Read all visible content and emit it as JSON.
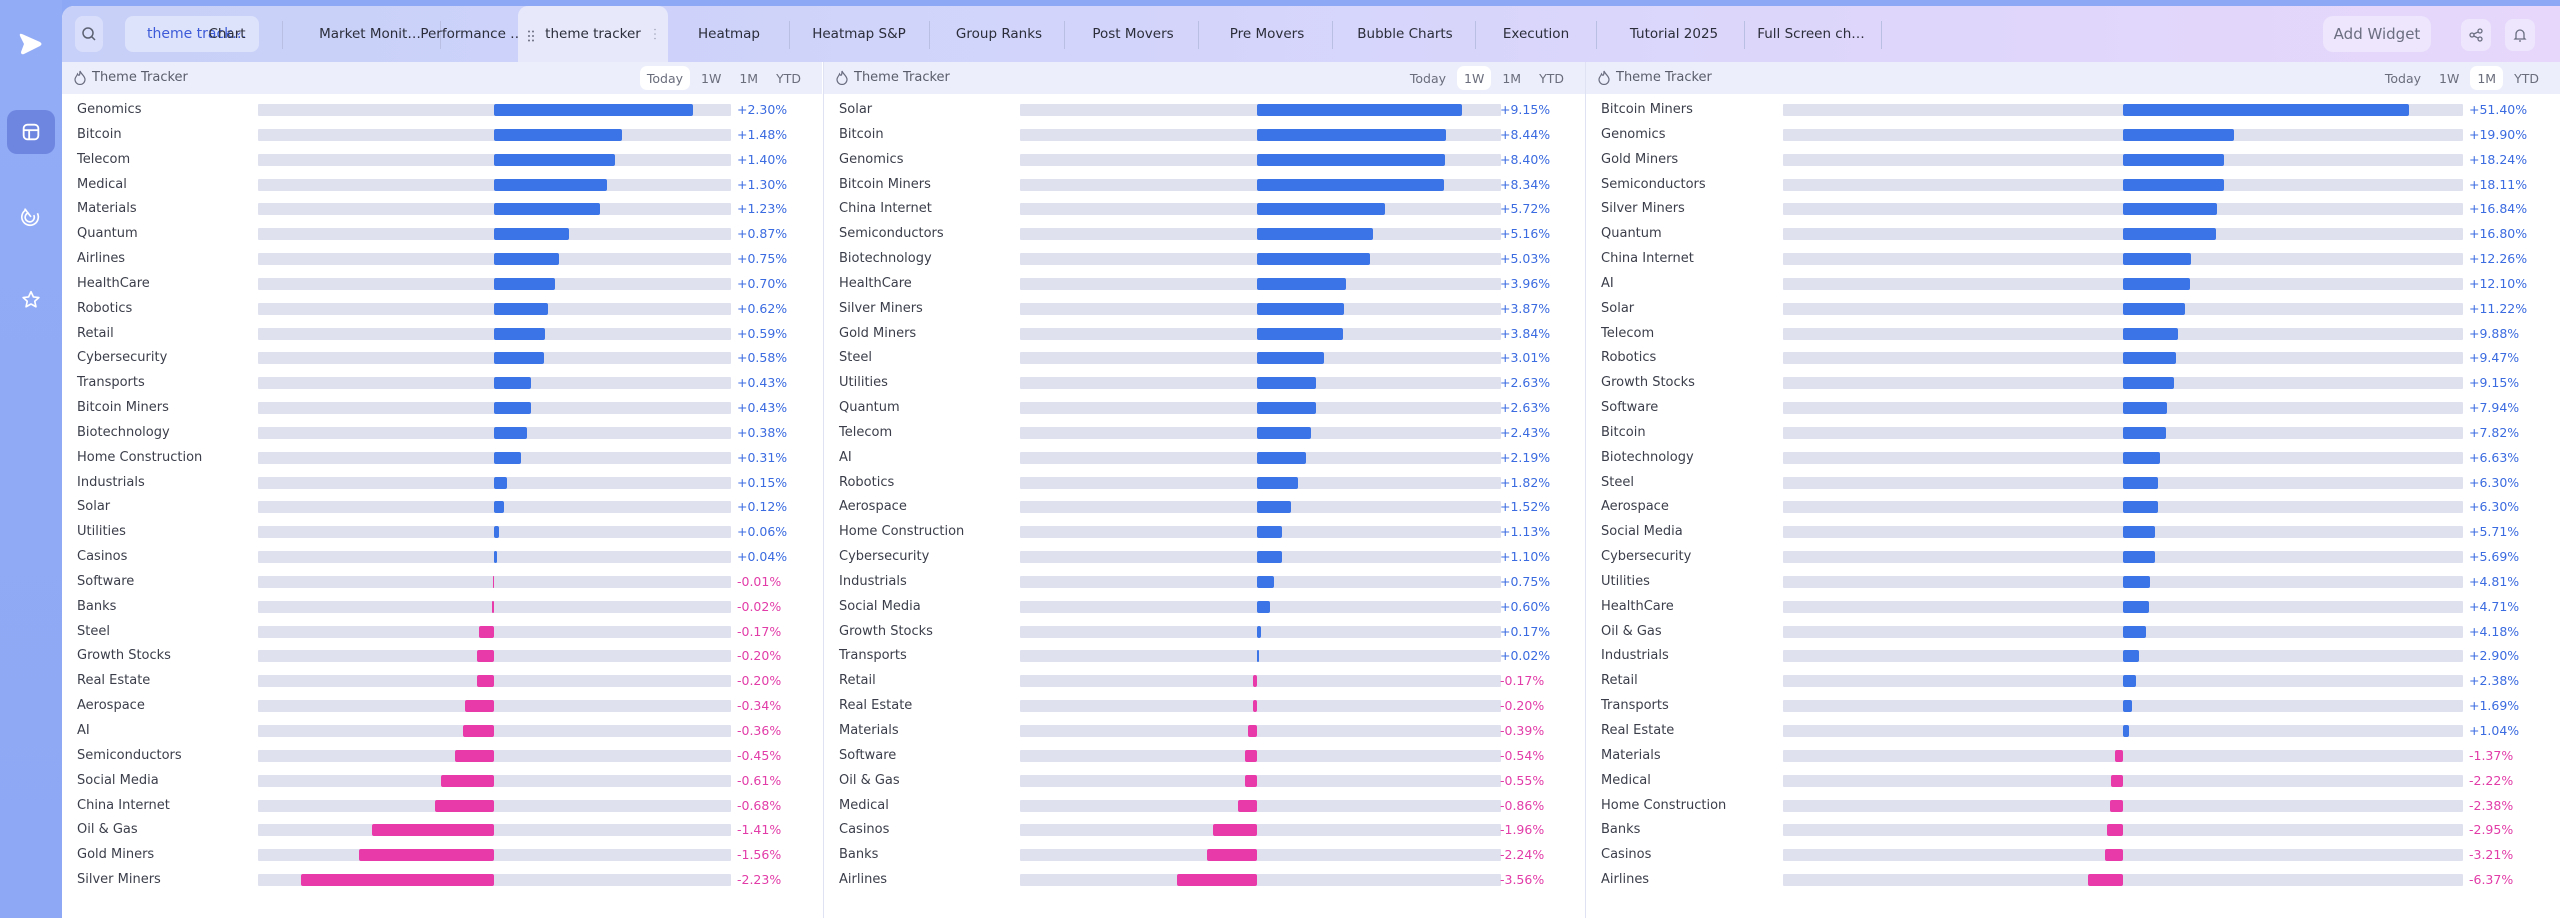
{
  "app": {
    "colors": {
      "sidebar": "#8da8f4",
      "positive": "#3b74e6",
      "negative": "#e93aaa",
      "track": "#dfe1ef"
    }
  },
  "sidebar": {
    "logo_icon": "play-logo-icon",
    "items": [
      {
        "name": "dashboard",
        "icon": "layout-icon",
        "active": true
      },
      {
        "name": "scanner",
        "icon": "radar-icon",
        "active": false
      },
      {
        "name": "watchlist",
        "icon": "star-icon",
        "active": false
      }
    ]
  },
  "topbar": {
    "search_icon": "search-icon",
    "layout_select": {
      "value": "theme track…",
      "icon": "chevron-down-icon"
    },
    "tabs": [
      {
        "label": "Chart",
        "active": false
      },
      {
        "label": "Market Monit…",
        "active": false
      },
      {
        "label": "Performance …",
        "active": false
      },
      {
        "label": "theme tracker",
        "active": true
      },
      {
        "label": "Heatmap",
        "active": false
      },
      {
        "label": "Heatmap S&P",
        "active": false
      },
      {
        "label": "Group Ranks",
        "active": false
      },
      {
        "label": "Post Movers",
        "active": false
      },
      {
        "label": "Pre Movers",
        "active": false
      },
      {
        "label": "Bubble Charts",
        "active": false
      },
      {
        "label": "Execution",
        "active": false
      },
      {
        "label": "Tutorial 2025",
        "active": false
      },
      {
        "label": "Full Screen ch…",
        "active": false
      }
    ],
    "add_widget_label": "Add Widget",
    "share_icon": "share-icon",
    "bell_icon": "bell-icon"
  },
  "panels": [
    {
      "title": "Theme Tracker",
      "ranges": [
        "Today",
        "1W",
        "1M",
        "YTD"
      ],
      "active_range": "Today",
      "rows": [
        {
          "label": "Genomics",
          "value": 2.3,
          "text": "+2.30%"
        },
        {
          "label": "Bitcoin",
          "value": 1.48,
          "text": "+1.48%"
        },
        {
          "label": "Telecom",
          "value": 1.4,
          "text": "+1.40%"
        },
        {
          "label": "Medical",
          "value": 1.3,
          "text": "+1.30%"
        },
        {
          "label": "Materials",
          "value": 1.23,
          "text": "+1.23%"
        },
        {
          "label": "Quantum",
          "value": 0.87,
          "text": "+0.87%"
        },
        {
          "label": "Airlines",
          "value": 0.75,
          "text": "+0.75%"
        },
        {
          "label": "HealthCare",
          "value": 0.7,
          "text": "+0.70%"
        },
        {
          "label": "Robotics",
          "value": 0.62,
          "text": "+0.62%"
        },
        {
          "label": "Retail",
          "value": 0.59,
          "text": "+0.59%"
        },
        {
          "label": "Cybersecurity",
          "value": 0.58,
          "text": "+0.58%"
        },
        {
          "label": "Transports",
          "value": 0.43,
          "text": "+0.43%"
        },
        {
          "label": "Bitcoin Miners",
          "value": 0.43,
          "text": "+0.43%"
        },
        {
          "label": "Biotechnology",
          "value": 0.38,
          "text": "+0.38%"
        },
        {
          "label": "Home Construction",
          "value": 0.31,
          "text": "+0.31%"
        },
        {
          "label": "Industrials",
          "value": 0.15,
          "text": "+0.15%"
        },
        {
          "label": "Solar",
          "value": 0.12,
          "text": "+0.12%"
        },
        {
          "label": "Utilities",
          "value": 0.06,
          "text": "+0.06%"
        },
        {
          "label": "Casinos",
          "value": 0.04,
          "text": "+0.04%"
        },
        {
          "label": "Software",
          "value": -0.01,
          "text": "-0.01%"
        },
        {
          "label": "Banks",
          "value": -0.02,
          "text": "-0.02%"
        },
        {
          "label": "Steel",
          "value": -0.17,
          "text": "-0.17%"
        },
        {
          "label": "Growth Stocks",
          "value": -0.2,
          "text": "-0.20%"
        },
        {
          "label": "Real Estate",
          "value": -0.2,
          "text": "-0.20%"
        },
        {
          "label": "Aerospace",
          "value": -0.34,
          "text": "-0.34%"
        },
        {
          "label": "AI",
          "value": -0.36,
          "text": "-0.36%"
        },
        {
          "label": "Semiconductors",
          "value": -0.45,
          "text": "-0.45%"
        },
        {
          "label": "Social Media",
          "value": -0.61,
          "text": "-0.61%"
        },
        {
          "label": "China Internet",
          "value": -0.68,
          "text": "-0.68%"
        },
        {
          "label": "Oil & Gas",
          "value": -1.41,
          "text": "-1.41%"
        },
        {
          "label": "Gold Miners",
          "value": -1.56,
          "text": "-1.56%"
        },
        {
          "label": "Silver Miners",
          "value": -2.23,
          "text": "-2.23%"
        }
      ]
    },
    {
      "title": "Theme Tracker",
      "ranges": [
        "Today",
        "1W",
        "1M",
        "YTD"
      ],
      "active_range": "1W",
      "rows": [
        {
          "label": "Solar",
          "value": 9.15,
          "text": "+9.15%"
        },
        {
          "label": "Bitcoin",
          "value": 8.44,
          "text": "+8.44%"
        },
        {
          "label": "Genomics",
          "value": 8.4,
          "text": "+8.40%"
        },
        {
          "label": "Bitcoin Miners",
          "value": 8.34,
          "text": "+8.34%"
        },
        {
          "label": "China Internet",
          "value": 5.72,
          "text": "+5.72%"
        },
        {
          "label": "Semiconductors",
          "value": 5.16,
          "text": "+5.16%"
        },
        {
          "label": "Biotechnology",
          "value": 5.03,
          "text": "+5.03%"
        },
        {
          "label": "HealthCare",
          "value": 3.96,
          "text": "+3.96%"
        },
        {
          "label": "Silver Miners",
          "value": 3.87,
          "text": "+3.87%"
        },
        {
          "label": "Gold Miners",
          "value": 3.84,
          "text": "+3.84%"
        },
        {
          "label": "Steel",
          "value": 3.01,
          "text": "+3.01%"
        },
        {
          "label": "Utilities",
          "value": 2.63,
          "text": "+2.63%"
        },
        {
          "label": "Quantum",
          "value": 2.63,
          "text": "+2.63%"
        },
        {
          "label": "Telecom",
          "value": 2.43,
          "text": "+2.43%"
        },
        {
          "label": "AI",
          "value": 2.19,
          "text": "+2.19%"
        },
        {
          "label": "Robotics",
          "value": 1.82,
          "text": "+1.82%"
        },
        {
          "label": "Aerospace",
          "value": 1.52,
          "text": "+1.52%"
        },
        {
          "label": "Home Construction",
          "value": 1.13,
          "text": "+1.13%"
        },
        {
          "label": "Cybersecurity",
          "value": 1.1,
          "text": "+1.10%"
        },
        {
          "label": "Industrials",
          "value": 0.75,
          "text": "+0.75%"
        },
        {
          "label": "Social Media",
          "value": 0.6,
          "text": "+0.60%"
        },
        {
          "label": "Growth Stocks",
          "value": 0.17,
          "text": "+0.17%"
        },
        {
          "label": "Transports",
          "value": 0.02,
          "text": "+0.02%"
        },
        {
          "label": "Retail",
          "value": -0.17,
          "text": "-0.17%"
        },
        {
          "label": "Real Estate",
          "value": -0.2,
          "text": "-0.20%"
        },
        {
          "label": "Materials",
          "value": -0.39,
          "text": "-0.39%"
        },
        {
          "label": "Software",
          "value": -0.54,
          "text": "-0.54%"
        },
        {
          "label": "Oil & Gas",
          "value": -0.55,
          "text": "-0.55%"
        },
        {
          "label": "Medical",
          "value": -0.86,
          "text": "-0.86%"
        },
        {
          "label": "Casinos",
          "value": -1.96,
          "text": "-1.96%"
        },
        {
          "label": "Banks",
          "value": -2.24,
          "text": "-2.24%"
        },
        {
          "label": "Airlines",
          "value": -3.56,
          "text": "-3.56%"
        }
      ]
    },
    {
      "title": "Theme Tracker",
      "ranges": [
        "Today",
        "1W",
        "1M",
        "YTD"
      ],
      "active_range": "1M",
      "rows": [
        {
          "label": "Bitcoin Miners",
          "value": 51.4,
          "text": "+51.40%"
        },
        {
          "label": "Genomics",
          "value": 19.9,
          "text": "+19.90%"
        },
        {
          "label": "Gold Miners",
          "value": 18.24,
          "text": "+18.24%"
        },
        {
          "label": "Semiconductors",
          "value": 18.11,
          "text": "+18.11%"
        },
        {
          "label": "Silver Miners",
          "value": 16.84,
          "text": "+16.84%"
        },
        {
          "label": "Quantum",
          "value": 16.8,
          "text": "+16.80%"
        },
        {
          "label": "China Internet",
          "value": 12.26,
          "text": "+12.26%"
        },
        {
          "label": "AI",
          "value": 12.1,
          "text": "+12.10%"
        },
        {
          "label": "Solar",
          "value": 11.22,
          "text": "+11.22%"
        },
        {
          "label": "Telecom",
          "value": 9.88,
          "text": "+9.88%"
        },
        {
          "label": "Robotics",
          "value": 9.47,
          "text": "+9.47%"
        },
        {
          "label": "Growth Stocks",
          "value": 9.15,
          "text": "+9.15%"
        },
        {
          "label": "Software",
          "value": 7.94,
          "text": "+7.94%"
        },
        {
          "label": "Bitcoin",
          "value": 7.82,
          "text": "+7.82%"
        },
        {
          "label": "Biotechnology",
          "value": 6.63,
          "text": "+6.63%"
        },
        {
          "label": "Steel",
          "value": 6.3,
          "text": "+6.30%"
        },
        {
          "label": "Aerospace",
          "value": 6.3,
          "text": "+6.30%"
        },
        {
          "label": "Social Media",
          "value": 5.71,
          "text": "+5.71%"
        },
        {
          "label": "Cybersecurity",
          "value": 5.69,
          "text": "+5.69%"
        },
        {
          "label": "Utilities",
          "value": 4.81,
          "text": "+4.81%"
        },
        {
          "label": "HealthCare",
          "value": 4.71,
          "text": "+4.71%"
        },
        {
          "label": "Oil & Gas",
          "value": 4.18,
          "text": "+4.18%"
        },
        {
          "label": "Industrials",
          "value": 2.9,
          "text": "+2.90%"
        },
        {
          "label": "Retail",
          "value": 2.38,
          "text": "+2.38%"
        },
        {
          "label": "Transports",
          "value": 1.69,
          "text": "+1.69%"
        },
        {
          "label": "Real Estate",
          "value": 1.04,
          "text": "+1.04%"
        },
        {
          "label": "Materials",
          "value": -1.37,
          "text": "-1.37%"
        },
        {
          "label": "Medical",
          "value": -2.22,
          "text": "-2.22%"
        },
        {
          "label": "Home Construction",
          "value": -2.38,
          "text": "-2.38%"
        },
        {
          "label": "Banks",
          "value": -2.95,
          "text": "-2.95%"
        },
        {
          "label": "Casinos",
          "value": -3.21,
          "text": "-3.21%"
        },
        {
          "label": "Airlines",
          "value": -6.37,
          "text": "-6.37%"
        }
      ]
    }
  ]
}
